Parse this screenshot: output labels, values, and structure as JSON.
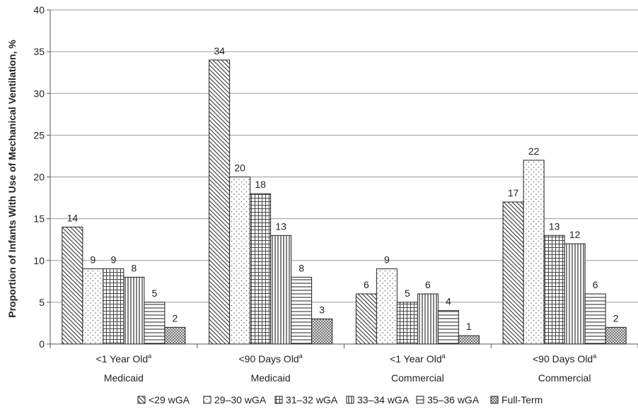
{
  "chart_data": {
    "type": "bar",
    "ylabel": "Proportion of Infants With Use of Mechanical Ventilation, %",
    "xlabel": "",
    "title": "",
    "ylim": [
      0,
      40
    ],
    "yticks": [
      "0",
      "5",
      "10",
      "15",
      "20",
      "25",
      "30",
      "35",
      "40"
    ],
    "grid": "horizontal",
    "legend_position": "bottom",
    "categories": [
      {
        "line1": "<1 Year Old",
        "sup": "a",
        "line2": "Medicaid"
      },
      {
        "line1": "<90 Days Old",
        "sup": "a",
        "line2": "Medicaid"
      },
      {
        "line1": "<1 Year Old",
        "sup": "a",
        "line2": "Commercial"
      },
      {
        "line1": "<90 Days Old",
        "sup": "a",
        "line2": "Commercial"
      }
    ],
    "series": [
      {
        "name": "<29 wGA",
        "pattern": "diagonal",
        "values": [
          14,
          34,
          6,
          17
        ]
      },
      {
        "name": "29–30 wGA",
        "pattern": "dots",
        "values": [
          9,
          20,
          9,
          22
        ]
      },
      {
        "name": "31–32 wGA",
        "pattern": "grid",
        "values": [
          9,
          18,
          5,
          13
        ]
      },
      {
        "name": "33–34 wGA",
        "pattern": "vertical",
        "values": [
          8,
          13,
          6,
          12
        ]
      },
      {
        "name": "35–36 wGA",
        "pattern": "horizontal",
        "values": [
          5,
          8,
          4,
          6
        ]
      },
      {
        "name": "Full-Term",
        "pattern": "checker",
        "values": [
          2,
          3,
          1,
          2
        ]
      }
    ]
  }
}
